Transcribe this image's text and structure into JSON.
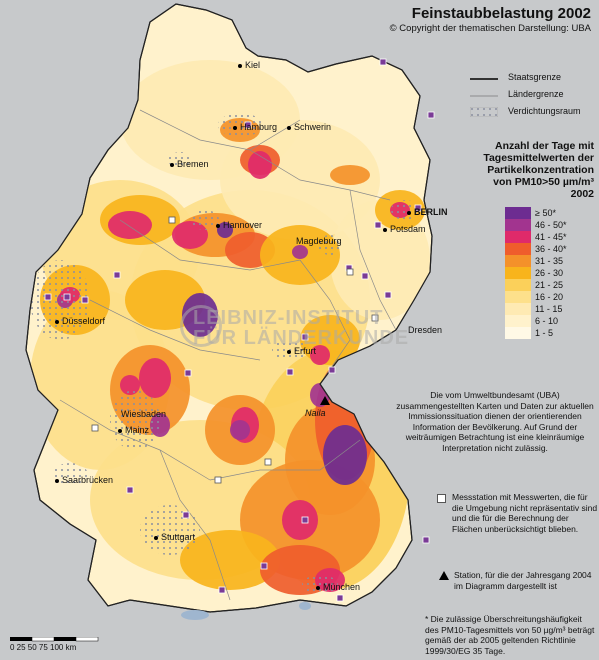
{
  "title": "Feinstaubbelastung 2002",
  "copyright": "© Copyright der thematischen Darstellung: UBA",
  "legend_lines": [
    {
      "label": "Staatsgrenze",
      "icon": "solid-line"
    },
    {
      "label": "Ländergrenze",
      "icon": "thin-line"
    },
    {
      "label": "Verdichtungsraum",
      "icon": "dot-pattern"
    }
  ],
  "legend_title_1": "Anzahl der Tage mit",
  "legend_title_2": "Tagesmittelwerten der",
  "legend_title_3": "Partikelkonzentration",
  "legend_title_4": "von PM10>50 µm/m³",
  "legend_title_5": "2002",
  "classes": [
    {
      "label": "≥ 50*",
      "color": "#6d2c91"
    },
    {
      "label": "46 - 50*",
      "color": "#a2348f"
    },
    {
      "label": "41 - 45*",
      "color": "#df2a6a"
    },
    {
      "label": "36 - 40*",
      "color": "#ef5d2c"
    },
    {
      "label": "31 - 35",
      "color": "#f4912a"
    },
    {
      "label": "26 - 30",
      "color": "#f8b41c"
    },
    {
      "label": "21 - 25",
      "color": "#fbd05a"
    },
    {
      "label": "16 - 20",
      "color": "#fde08b"
    },
    {
      "label": "11 - 15",
      "color": "#feeab3"
    },
    {
      "label": "6 - 10",
      "color": "#fff2cc"
    },
    {
      "label": "1 - 5",
      "color": "#fff9e6"
    }
  ],
  "note": "Die vom Umweltbundesamt (UBA) zusammengestellten Karten und Daten zur aktuellen Immissionssituation dienen der orientierenden Information der Bevölkerung. Auf Grund der weiträumigen Betrachtung ist eine kleinräumige Interpretation nicht zulässig.",
  "station_note": "Messstation mit Messwerten, die für die Umgebung nicht repräsentativ sind und die für die Berechnung der Flächen unberücksichtigt blieben.",
  "triangle_note": "Station, für die der Jahresgang 2004 im Diagramm dargestellt ist",
  "footnote": "* Die zulässige Überschreitungshäufigkeit des PM10-Tagesmittels von 50 µg/m³ beträgt gemäß der ab 2005 geltenden Richtlinie 1999/30/EG 35 Tage.",
  "cities": [
    {
      "name": "Kiel"
    },
    {
      "name": "Hamburg"
    },
    {
      "name": "Schwerin"
    },
    {
      "name": "Bremen"
    },
    {
      "name": "BERLIN"
    },
    {
      "name": "Potsdam"
    },
    {
      "name": "Hannover"
    },
    {
      "name": "Magdeburg"
    },
    {
      "name": "Düsseldorf"
    },
    {
      "name": "Dresden"
    },
    {
      "name": "Erfurt"
    },
    {
      "name": "Wiesbaden"
    },
    {
      "name": "Mainz"
    },
    {
      "name": "Saarbrücken"
    },
    {
      "name": "Stuttgart"
    },
    {
      "name": "München"
    }
  ],
  "naila": "Naila",
  "scale_labels": "0   25   50   75  100 km",
  "watermark_1": "LEIBNIZ-INSTITUT",
  "watermark_2": "FÜR LÄNDERKUNDE"
}
